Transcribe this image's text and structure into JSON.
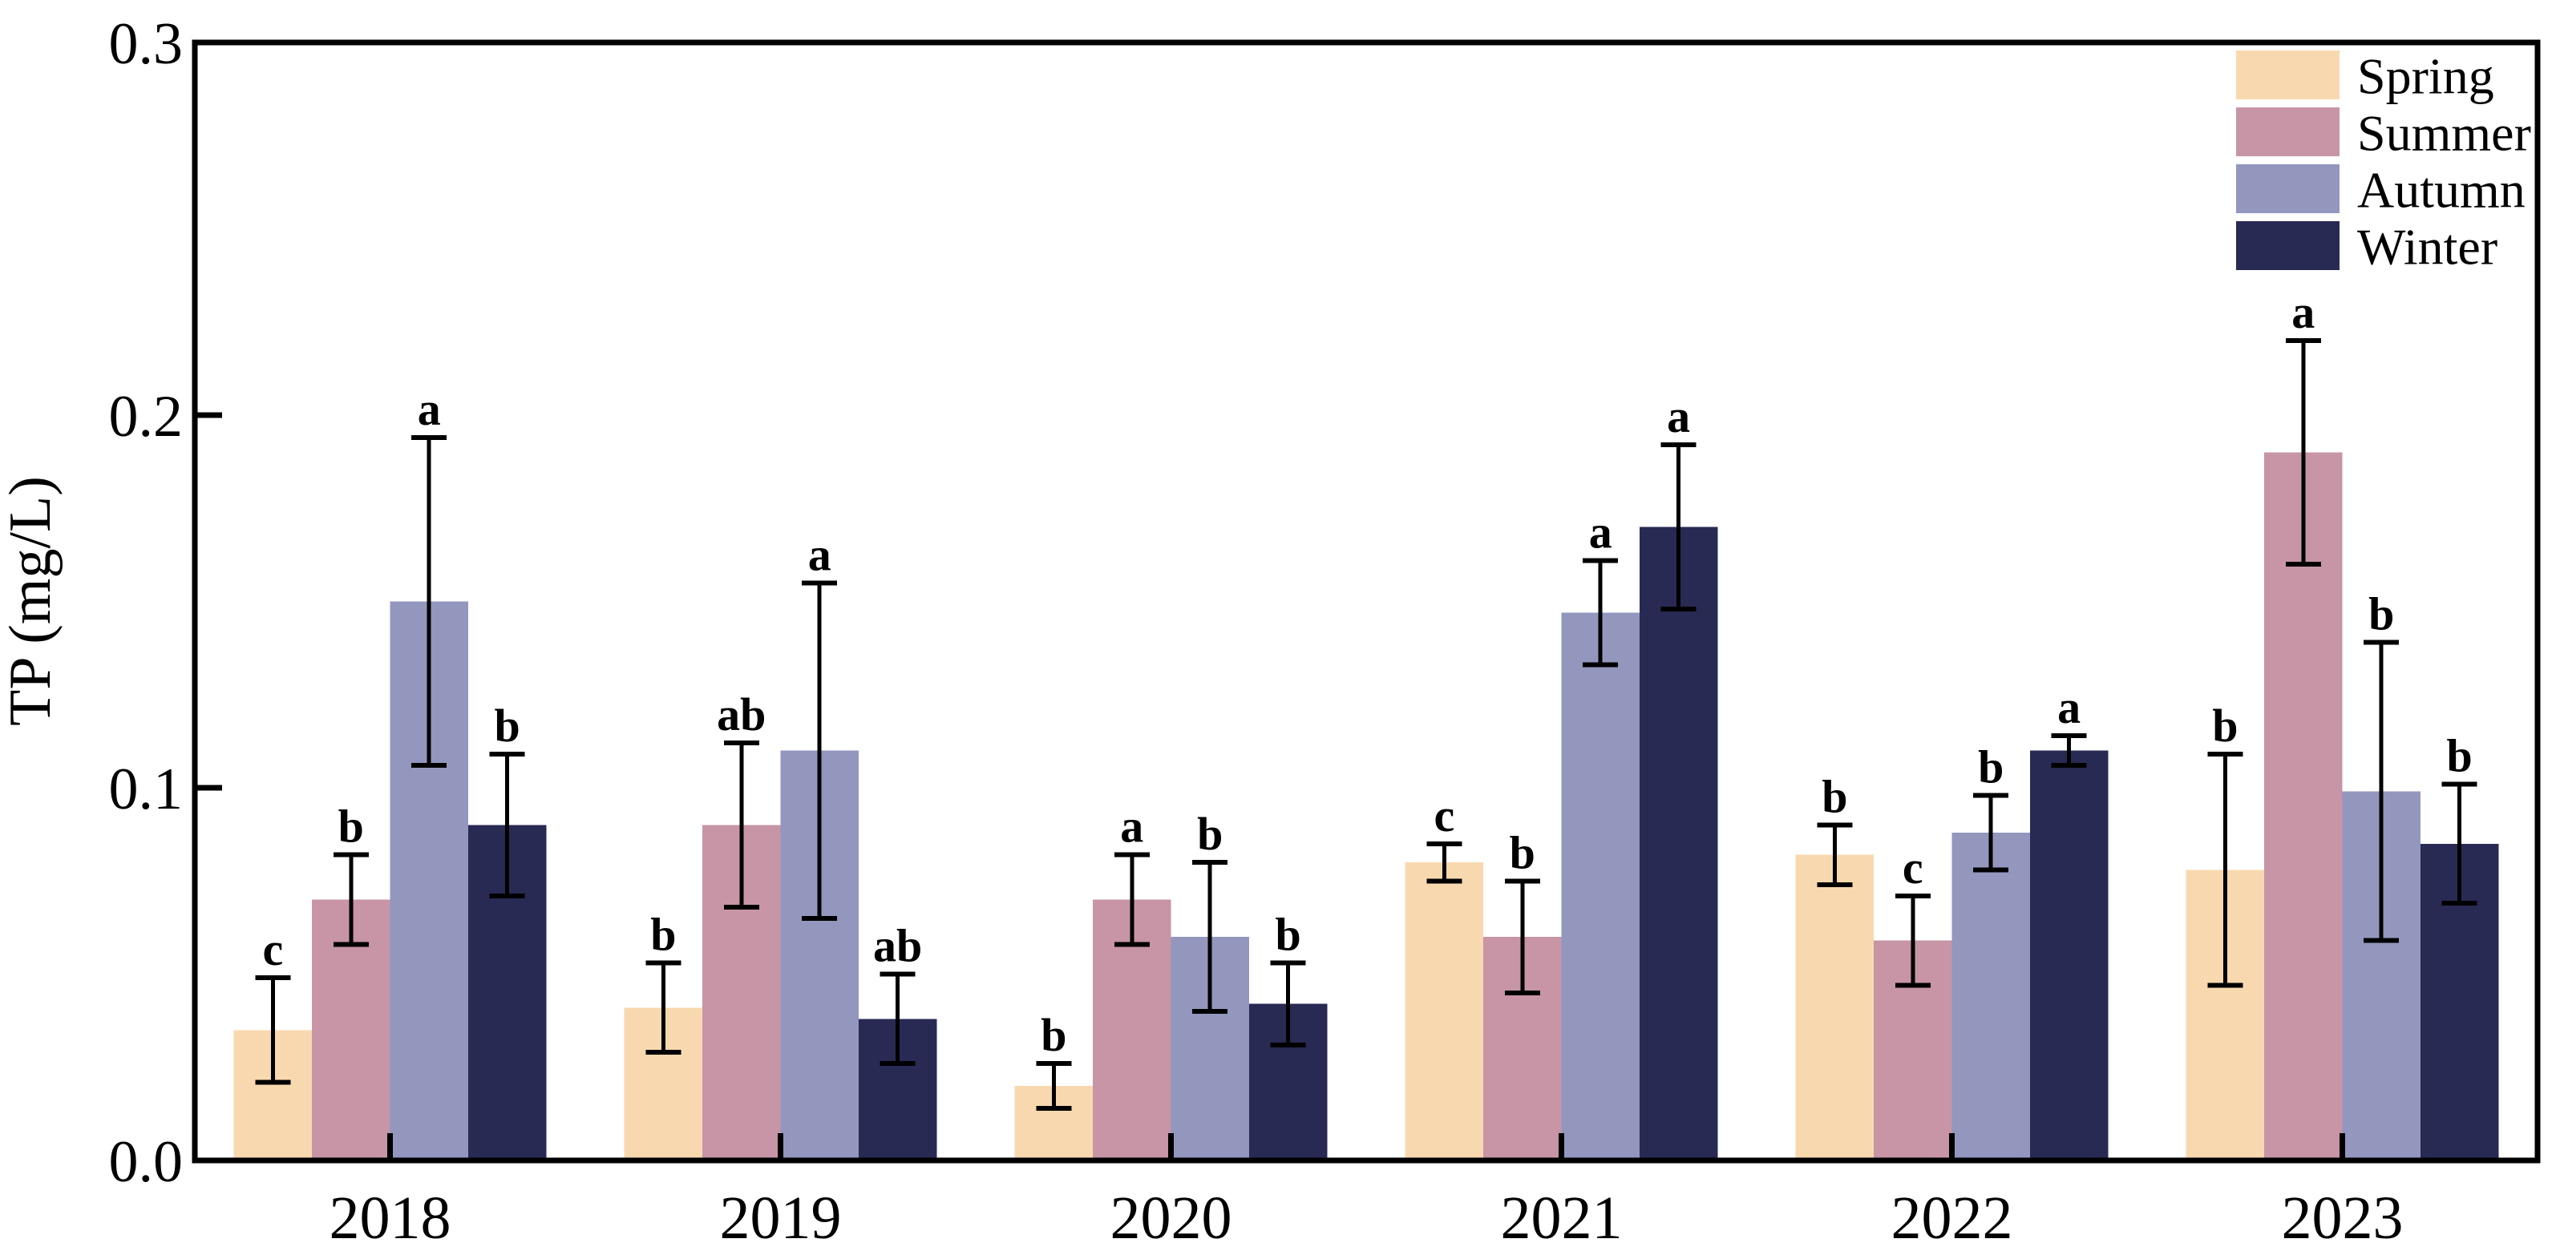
{
  "figure": {
    "background": "#ffffff",
    "frame_color": "#000000"
  },
  "axes": {
    "y_title": "TP (mg/L)",
    "y_ticks": [
      {
        "label": "0.0",
        "value": 0.0,
        "has_mark": false
      },
      {
        "label": "0.1",
        "value": 0.1,
        "has_mark": true
      },
      {
        "label": "0.2",
        "value": 0.2,
        "has_mark": true
      },
      {
        "label": "0.3",
        "value": 0.3,
        "has_mark": false
      }
    ]
  },
  "legend": {
    "items": [
      {
        "label": "Spring",
        "color": "#f8d9af"
      },
      {
        "label": "Summer",
        "color": "#c795a6"
      },
      {
        "label": "Autumn",
        "color": "#9397be"
      },
      {
        "label": "Winter",
        "color": "#282a54"
      }
    ]
  },
  "chart_data": {
    "type": "bar",
    "title": "",
    "xlabel": "",
    "ylabel": "TP (mg/L)",
    "ylim": [
      0,
      0.3
    ],
    "grid": false,
    "legend_position": "upper right",
    "error_bars": true,
    "categories": [
      "2018",
      "2019",
      "2020",
      "2021",
      "2022",
      "2023"
    ],
    "series": [
      {
        "name": "Spring",
        "color": "#f8d9af",
        "values": [
          0.035,
          0.041,
          0.02,
          0.08,
          0.082,
          0.078
        ],
        "errors": [
          0.014,
          0.012,
          0.006,
          0.005,
          0.008,
          0.031
        ],
        "sig_letters": [
          "c",
          "b",
          "b",
          "c",
          "b",
          "b"
        ]
      },
      {
        "name": "Summer",
        "color": "#c795a6",
        "values": [
          0.07,
          0.09,
          0.07,
          0.06,
          0.059,
          0.19
        ],
        "errors": [
          0.012,
          0.022,
          0.012,
          0.015,
          0.012,
          0.03
        ],
        "sig_letters": [
          "b",
          "ab",
          "a",
          "b",
          "c",
          "a"
        ]
      },
      {
        "name": "Autumn",
        "color": "#9397be",
        "values": [
          0.15,
          0.11,
          0.06,
          0.147,
          0.088,
          0.099
        ],
        "errors": [
          0.044,
          0.045,
          0.02,
          0.014,
          0.01,
          0.04
        ],
        "sig_letters": [
          "a",
          "a",
          "b",
          "a",
          "b",
          "b"
        ]
      },
      {
        "name": "Winter",
        "color": "#282a54",
        "values": [
          0.09,
          0.038,
          0.042,
          0.17,
          0.11,
          0.085
        ],
        "errors": [
          0.019,
          0.012,
          0.011,
          0.022,
          0.004,
          0.016
        ],
        "sig_letters": [
          "b",
          "ab",
          "b",
          "a",
          "a",
          "b"
        ]
      }
    ]
  }
}
